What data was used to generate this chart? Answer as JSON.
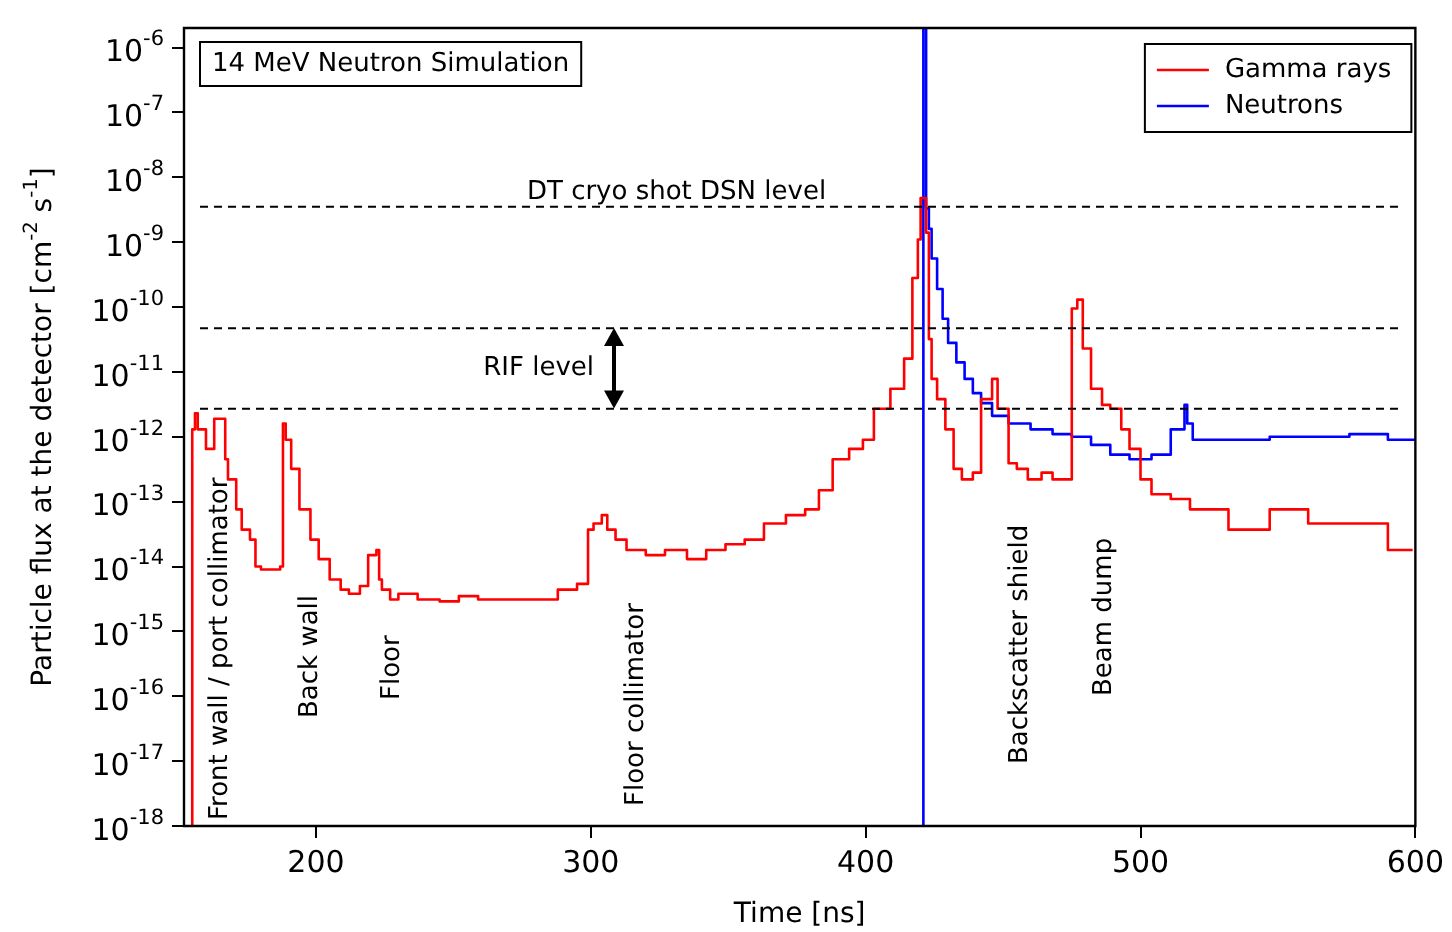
{
  "chart_data": {
    "type": "step",
    "title": "14 MeV Neutron Simulation",
    "xlabel": "Time [ns]",
    "ylabel": "Particle flux at the detector [cm$^{-2}$ s$^{-1}$]",
    "series": [
      {
        "name": "Gamma rays",
        "color": "#ff0000",
        "x": [
          155,
          156,
          157,
          160,
          163,
          164,
          167,
          168,
          171,
          173,
          176,
          178,
          180,
          183,
          187,
          188,
          189,
          191,
          194,
          198,
          201,
          205,
          209,
          212,
          216,
          219,
          222,
          223,
          224,
          227,
          230,
          237,
          245,
          252,
          259,
          266,
          273,
          281,
          288,
          295,
          299,
          301,
          304,
          306,
          309,
          313,
          320,
          327,
          335,
          342,
          349,
          356,
          363,
          371,
          378,
          383,
          388,
          394,
          399,
          403,
          409,
          414,
          417,
          419,
          420,
          422,
          423,
          424,
          426,
          429,
          432,
          435,
          439,
          442,
          446,
          448,
          452,
          455,
          459,
          464,
          468,
          473,
          475,
          477,
          479,
          482,
          486,
          489,
          493,
          496,
          500,
          504,
          511,
          518,
          532,
          547,
          561,
          576,
          590,
          599
        ],
        "values": [
          1e-18,
          1.3e-12,
          2.3e-12,
          1.3e-12,
          6.5e-13,
          1.9e-12,
          1.9e-12,
          4.5e-13,
          2.2e-13,
          7.6e-14,
          3.7e-14,
          2.6e-14,
          1e-14,
          9e-15,
          9e-15,
          1e-14,
          1.6e-12,
          9e-13,
          3.2e-13,
          7.6e-14,
          2.6e-14,
          1.3e-14,
          6.3e-15,
          4.4e-15,
          3.8e-15,
          5e-15,
          1.5e-14,
          1.8e-14,
          6.3e-15,
          4.4e-15,
          3.1e-15,
          3.8e-15,
          3.1e-15,
          2.9e-15,
          3.5e-15,
          3.1e-15,
          3.1e-15,
          3.1e-15,
          3.1e-15,
          4.4e-15,
          5.4e-15,
          3.7e-14,
          4.6e-14,
          6.2e-14,
          3.7e-14,
          2.6e-14,
          1.8e-14,
          1.5e-14,
          1.8e-14,
          1.3e-14,
          1.8e-14,
          2.2e-14,
          2.6e-14,
          4.6e-14,
          6.2e-14,
          7.6e-14,
          1.5e-13,
          4.5e-13,
          6.5e-13,
          9e-13,
          2.7e-12,
          5.5e-12,
          1.6e-11,
          2.8e-10,
          1.1e-09,
          4.8e-09,
          1.4e-09,
          3.2e-11,
          7.8e-12,
          3.8e-12,
          1.3e-12,
          3.2e-13,
          2.2e-13,
          2.8e-13,
          3.8e-12,
          7.8e-12,
          2.7e-12,
          3.9e-13,
          3.2e-13,
          2.2e-13,
          2.8e-13,
          2.2e-13,
          2.2e-13,
          9.5e-11,
          1.3e-10,
          2.3e-11,
          5.5e-12,
          3.1e-12,
          2.7e-12,
          1.3e-12,
          6.5e-13,
          2.2e-13,
          1.3e-13,
          1.1e-13,
          7.6e-14,
          3.7e-14,
          7.6e-14,
          4.6e-14,
          4.6e-14,
          1.8e-14
        ]
      },
      {
        "name": "Neutrons",
        "color": "#0000ff",
        "x": [
          421,
          422,
          423,
          424,
          426,
          428,
          430,
          433,
          436,
          439,
          442,
          446,
          452,
          460,
          468,
          475,
          482,
          489,
          496,
          504,
          511,
          516,
          517,
          519,
          523,
          547,
          576,
          590,
          600
        ],
        "values": [
          1e-18,
          2e-06,
          3.3e-09,
          1.6e-09,
          5.6e-10,
          1.9e-10,
          6.6e-11,
          2.8e-11,
          1.4e-11,
          7.8e-12,
          4.7e-12,
          3.3e-12,
          2.1e-12,
          1.6e-12,
          1.3e-12,
          1.1e-12,
          1e-12,
          7.5e-13,
          5.3e-13,
          4.5e-13,
          5.3e-13,
          1.3e-12,
          3.1e-12,
          1.6e-12,
          9e-13,
          9e-13,
          1e-12,
          1.1e-12,
          9e-13
        ]
      }
    ],
    "xlim": [
      152,
      600
    ],
    "xticks": [
      200,
      300,
      400,
      500,
      600
    ],
    "ylim": [
      1e-18,
      2e-06
    ],
    "yticks": [
      {
        "value": 1e-06,
        "label": "10$^{-6}$"
      },
      {
        "value": 1e-07,
        "label": "10$^{-7}$"
      },
      {
        "value": 1e-08,
        "label": "10$^{-8}$"
      },
      {
        "value": 1e-09,
        "label": "10$^{-9}$"
      },
      {
        "value": 1e-10,
        "label": "10$^{-10}$"
      },
      {
        "value": 1e-11,
        "label": "10$^{-11}$"
      },
      {
        "value": 1e-12,
        "label": "10$^{-12}$"
      },
      {
        "value": 1e-13,
        "label": "10$^{-13}$"
      },
      {
        "value": 1e-14,
        "label": "10$^{-14}$"
      },
      {
        "value": 1e-15,
        "label": "10$^{-15}$"
      },
      {
        "value": 1e-16,
        "label": "10$^{-16}$"
      },
      {
        "value": 1e-17,
        "label": "10$^{-17}$"
      },
      {
        "value": 1e-18,
        "label": "10$^{-18}$"
      }
    ],
    "log": "y",
    "grid": false,
    "legend": "top right",
    "marker": "none",
    "line_style": "solid",
    "ref_lines": [
      {
        "axis": "y",
        "value": 3.5e-09,
        "label": "DT cryo shot DSN level",
        "line_style": "dashed",
        "color": "#000000"
      },
      {
        "axis": "y",
        "value": 4.7e-11,
        "line_style": "dashed",
        "color": "#000000"
      },
      {
        "axis": "y",
        "value": 2.7e-12,
        "line_style": "dashed",
        "color": "#000000"
      }
    ],
    "annotations": [
      "RIF level",
      "Front wall / port collimator",
      "Back wall",
      "Floor",
      "Floor collimator",
      "Backscatter shield",
      "Beam dump"
    ]
  }
}
